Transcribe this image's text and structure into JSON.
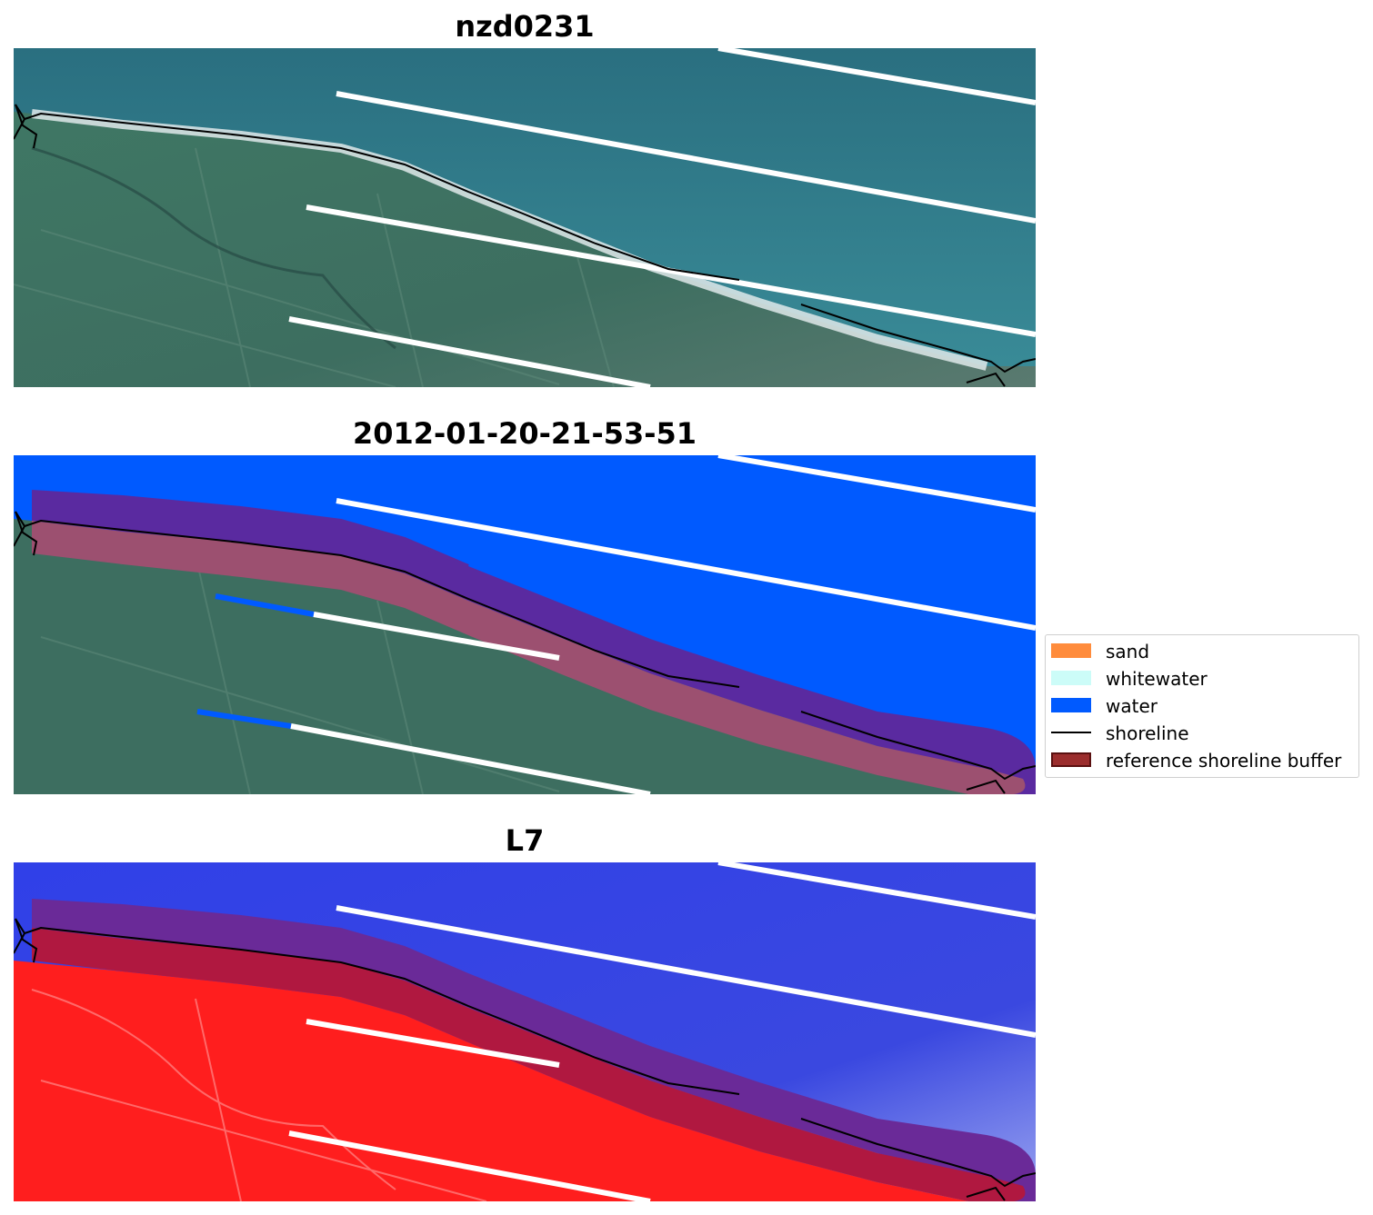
{
  "panels": [
    {
      "title": "nzd0231",
      "view": "rgb"
    },
    {
      "title": "2012-01-20-21-53-51",
      "view": "classified"
    },
    {
      "title": "L7",
      "view": "index"
    }
  ],
  "legend": {
    "items": [
      {
        "label": "sand",
        "color": "#ff8c3c",
        "kind": "patch"
      },
      {
        "label": "whitewater",
        "color": "#ccfcf8",
        "kind": "patch"
      },
      {
        "label": "water",
        "color": "#005aff",
        "kind": "patch"
      },
      {
        "label": "shoreline",
        "color": "#000000",
        "kind": "line"
      },
      {
        "label": "reference shoreline buffer",
        "color": "#9b2d2d",
        "kind": "patch"
      }
    ]
  },
  "colors": {
    "ocean": "#2f7d8c",
    "land": "#3d6e60",
    "water_class": "#005aff",
    "buffer_over_water": "#5a2aa0",
    "buffer_over_land": "#9c5070",
    "index_land": "#ff1e1e",
    "index_water": "#2f3ce6",
    "shoreline": "#000000",
    "scan_gap": "#ffffff"
  }
}
